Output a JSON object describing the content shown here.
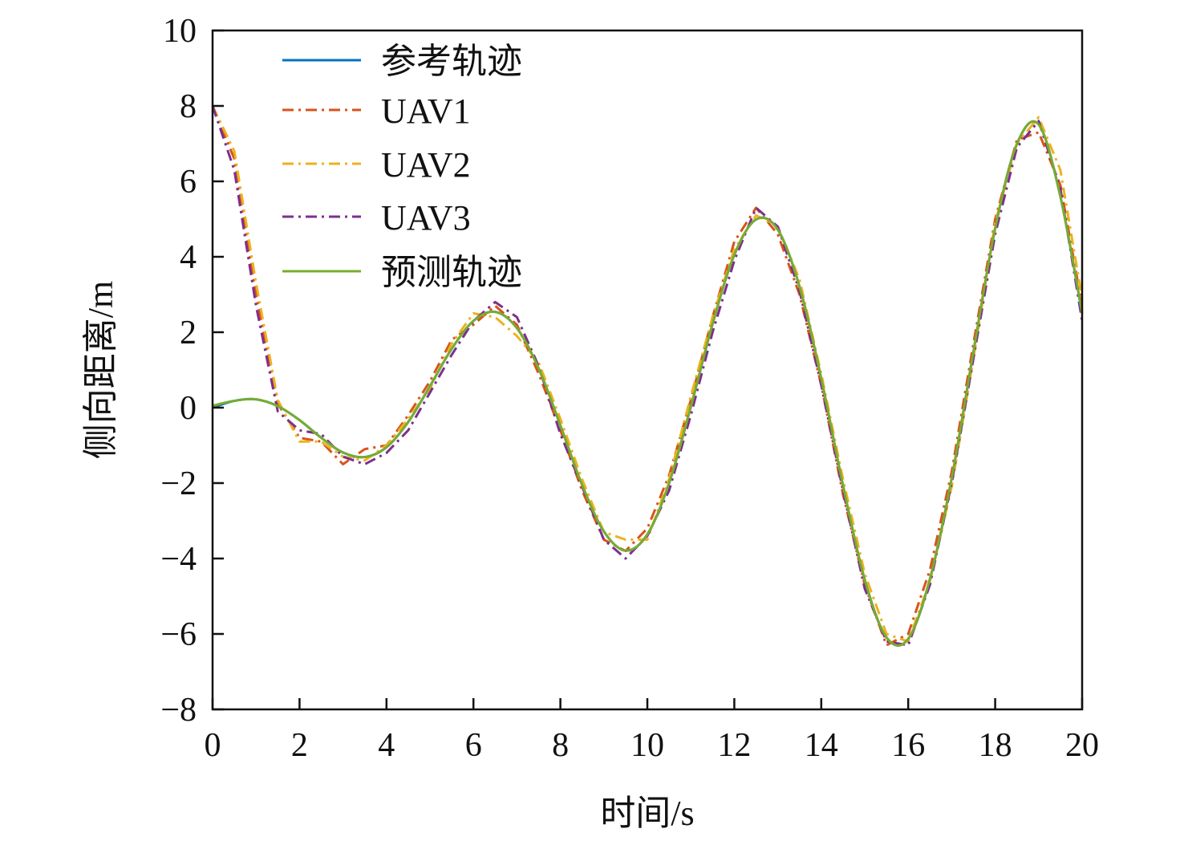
{
  "chart_data": {
    "type": "line",
    "title": "",
    "xlabel": "时间/s",
    "ylabel": "侧向距离/m",
    "xlim": [
      0,
      20
    ],
    "ylim": [
      -8,
      10
    ],
    "xticks": [
      0,
      2,
      4,
      6,
      8,
      10,
      12,
      14,
      16,
      18,
      20
    ],
    "yticks": [
      -8,
      -6,
      -4,
      -2,
      0,
      2,
      4,
      6,
      8,
      10
    ],
    "grid": false,
    "legend_position": "top-left",
    "x": [
      0,
      0.5,
      1,
      1.5,
      2,
      2.5,
      3,
      3.5,
      4,
      4.5,
      5,
      5.5,
      6,
      6.5,
      7,
      7.5,
      8,
      8.5,
      9,
      9.5,
      10,
      10.5,
      11,
      11.5,
      12,
      12.5,
      13,
      13.5,
      14,
      14.5,
      15,
      15.5,
      16,
      16.5,
      17,
      17.5,
      18,
      18.5,
      19,
      19.5,
      20
    ],
    "series": [
      {
        "name": "参考轨迹",
        "color": "#0072bd",
        "style": "solid",
        "smooth": true,
        "values": [
          0,
          0.18,
          0.22,
          0.04,
          -0.33,
          -0.8,
          -1.19,
          -1.31,
          -1.05,
          -0.38,
          0.57,
          1.56,
          2.3,
          2.54,
          2.11,
          1.04,
          -0.47,
          -2.05,
          -3.28,
          -3.79,
          -3.36,
          -2.0,
          0.02,
          2.22,
          4.05,
          4.99,
          4.72,
          3.21,
          0.77,
          -2.06,
          -4.56,
          -6.09,
          -6.13,
          -4.54,
          -1.87,
          1.48,
          4.75,
          6.99,
          7.51,
          5.6,
          2.5
        ]
      },
      {
        "name": "UAV1",
        "color": "#d95319",
        "style": "dashdot",
        "smooth": false,
        "values": [
          8.0,
          6.6,
          3.0,
          0.1,
          -0.8,
          -0.9,
          -1.5,
          -1.1,
          -1.0,
          -0.2,
          0.7,
          1.8,
          2.2,
          2.7,
          2.2,
          0.9,
          -0.6,
          -2.2,
          -3.5,
          -3.8,
          -3.2,
          -1.8,
          0.2,
          2.4,
          4.4,
          5.3,
          4.6,
          3.0,
          0.6,
          -2.3,
          -4.7,
          -6.3,
          -6.0,
          -4.3,
          -1.7,
          1.7,
          5.0,
          7.1,
          7.3,
          5.9,
          2.7
        ]
      },
      {
        "name": "UAV2",
        "color": "#edb120",
        "style": "dashdot",
        "smooth": false,
        "values": [
          8.0,
          6.8,
          3.3,
          0.2,
          -0.9,
          -0.9,
          -1.3,
          -1.4,
          -1.0,
          -0.3,
          0.5,
          1.7,
          2.5,
          2.4,
          1.9,
          1.2,
          -0.3,
          -1.9,
          -3.3,
          -3.5,
          -3.5,
          -1.9,
          0.3,
          2.4,
          4.2,
          5.1,
          4.8,
          3.4,
          0.9,
          -1.9,
          -4.4,
          -6.0,
          -6.2,
          -4.6,
          -2.1,
          1.3,
          4.9,
          7.0,
          7.7,
          6.3,
          2.9
        ]
      },
      {
        "name": "UAV3",
        "color": "#7e2f8e",
        "style": "dashdot",
        "smooth": false,
        "values": [
          8.0,
          6.3,
          2.7,
          -0.1,
          -0.6,
          -0.7,
          -1.3,
          -1.5,
          -1.2,
          -0.6,
          0.4,
          1.4,
          2.3,
          2.8,
          2.4,
          1.1,
          -0.7,
          -2.1,
          -3.5,
          -4.0,
          -3.4,
          -2.2,
          -0.2,
          2.0,
          3.9,
          5.3,
          4.8,
          3.1,
          0.6,
          -2.2,
          -4.8,
          -6.2,
          -6.3,
          -4.7,
          -2.0,
          1.3,
          4.6,
          6.9,
          7.6,
          5.8,
          2.3
        ]
      },
      {
        "name": "预测轨迹",
        "color": "#77ac30",
        "style": "solid",
        "smooth": true,
        "values": [
          0.05,
          0.18,
          0.22,
          0.04,
          -0.33,
          -0.8,
          -1.19,
          -1.31,
          -1.05,
          -0.38,
          0.57,
          1.56,
          2.3,
          2.54,
          2.11,
          1.04,
          -0.47,
          -2.05,
          -3.28,
          -3.79,
          -3.36,
          -2.0,
          0.02,
          2.22,
          4.05,
          4.99,
          4.72,
          3.21,
          0.77,
          -2.06,
          -4.56,
          -6.09,
          -6.13,
          -4.54,
          -1.87,
          1.48,
          4.75,
          6.99,
          7.51,
          5.6,
          2.5
        ]
      }
    ]
  }
}
